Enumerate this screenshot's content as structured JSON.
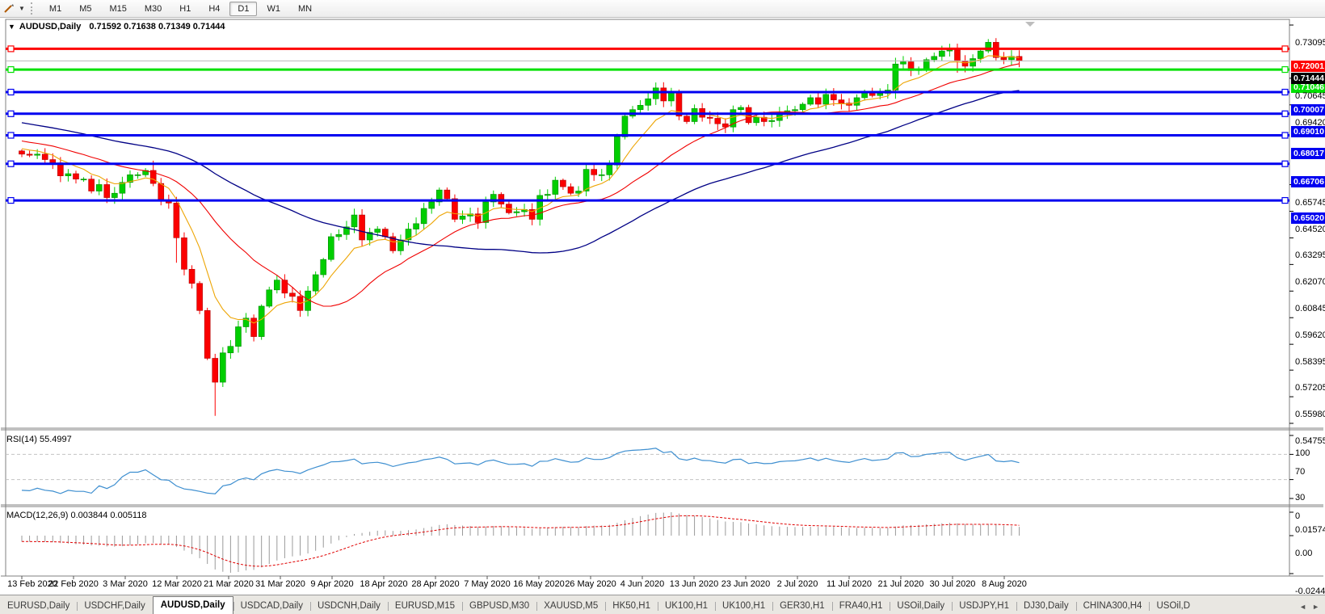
{
  "toolbar": {
    "tool_icon_glyph": "✐",
    "dropdown_glyph": "▼",
    "timeframes": [
      "M1",
      "M5",
      "M15",
      "M30",
      "H1",
      "H4",
      "D1",
      "W1",
      "MN"
    ],
    "active_timeframe": "D1"
  },
  "chart": {
    "menu_arrow": "▼",
    "title_symbol": "AUDUSD,Daily",
    "ohlc": "0.71592 0.71638 0.71349 0.71444"
  },
  "chart_data": {
    "type": "candlestick",
    "symbol": "AUDUSD",
    "period": "Daily",
    "ohlc_display": {
      "open": "0.71592",
      "high": "0.71638",
      "low": "0.71349",
      "close": "0.71444"
    },
    "ylim": [
      0.54755,
      0.73095
    ],
    "y_ticks": [
      "0.73095",
      "0.70645",
      "0.69420",
      "0.65745",
      "0.64520",
      "0.63295",
      "0.62070",
      "0.60845",
      "0.59620",
      "0.58395",
      "0.57205",
      "0.55980",
      "0.54755"
    ],
    "x_labels": [
      "13 Feb 2020",
      "22 Feb 2020",
      "3 Mar 2020",
      "12 Mar 2020",
      "21 Mar 2020",
      "31 Mar 2020",
      "9 Apr 2020",
      "18 Apr 2020",
      "28 Apr 2020",
      "7 May 2020",
      "16 May 2020",
      "26 May 2020",
      "4 Jun 2020",
      "13 Jun 2020",
      "23 Jun 2020",
      "2 Jul 2020",
      "11 Jul 2020",
      "21 Jul 2020",
      "30 Jul 2020",
      "8 Aug 2020"
    ],
    "hlines": [
      {
        "label": "0.72001",
        "price": 0.72001,
        "color": "#FE0000",
        "width": 3
      },
      {
        "label": "0.71046",
        "price": 0.71046,
        "color": "#00E000",
        "width": 3
      },
      {
        "label": "0.70007",
        "price": 0.70007,
        "color": "#0000F0",
        "width": 3
      },
      {
        "label": "0.69010",
        "price": 0.6901,
        "color": "#0000F0",
        "width": 3
      },
      {
        "label": "0.68017",
        "price": 0.68017,
        "color": "#0000F0",
        "width": 3
      },
      {
        "label": "0.66706",
        "price": 0.66706,
        "color": "#0000F0",
        "width": 3
      },
      {
        "label": "0.65020",
        "price": 0.6502,
        "color": "#0000F0",
        "width": 3
      }
    ],
    "current_price": {
      "label": "0.71444",
      "price": 0.71444,
      "line_color": "#B8B8B8",
      "label_bg": "#000000"
    },
    "first_open": 0.673,
    "closes": [
      0.6715,
      0.671,
      0.6715,
      0.669,
      0.6675,
      0.6615,
      0.6625,
      0.66,
      0.66,
      0.6545,
      0.6575,
      0.6515,
      0.6535,
      0.6585,
      0.662,
      0.662,
      0.664,
      0.658,
      0.65,
      0.649,
      0.633,
      0.6185,
      0.612,
      0.5995,
      0.5775,
      0.5665,
      0.58,
      0.583,
      0.592,
      0.596,
      0.5875,
      0.6015,
      0.609,
      0.6135,
      0.6075,
      0.606,
      0.5995,
      0.6085,
      0.616,
      0.623,
      0.6335,
      0.6345,
      0.638,
      0.6435,
      0.632,
      0.6355,
      0.637,
      0.6335,
      0.627,
      0.632,
      0.637,
      0.6395,
      0.6465,
      0.6495,
      0.655,
      0.651,
      0.6415,
      0.643,
      0.644,
      0.64,
      0.6495,
      0.653,
      0.6485,
      0.6445,
      0.645,
      0.646,
      0.6415,
      0.6525,
      0.653,
      0.6595,
      0.6565,
      0.6535,
      0.6545,
      0.6645,
      0.662,
      0.662,
      0.6665,
      0.6795,
      0.689,
      0.692,
      0.694,
      0.697,
      0.702,
      0.696,
      0.7,
      0.689,
      0.6865,
      0.6925,
      0.6885,
      0.688,
      0.6855,
      0.684,
      0.692,
      0.693,
      0.686,
      0.6885,
      0.6865,
      0.687,
      0.6905,
      0.6915,
      0.692,
      0.6945,
      0.6975,
      0.6945,
      0.699,
      0.6965,
      0.695,
      0.694,
      0.6975,
      0.7005,
      0.6985,
      0.6995,
      0.701,
      0.713,
      0.714,
      0.71,
      0.7105,
      0.715,
      0.7165,
      0.719,
      0.7195,
      0.7145,
      0.712,
      0.7155,
      0.719,
      0.723,
      0.716,
      0.715,
      0.7165,
      0.71444
    ],
    "special_wicks": {
      "17": {
        "high": 0.6685
      },
      "20": {
        "low": 0.6215
      },
      "25": {
        "low": 0.551
      },
      "82": {
        "high": 0.7045
      },
      "113": {
        "low": 0.697
      },
      "121": {
        "low": 0.709
      },
      "125": {
        "high": 0.7245
      }
    },
    "bull_color": "#00CE00",
    "bear_color": "#FB0000",
    "ma_lines": [
      {
        "name": "ma-fast",
        "type": "ema",
        "period": 8,
        "color": "#EDA504"
      },
      {
        "name": "ma-mid",
        "type": "sma",
        "period": 20,
        "color": "#F00000"
      },
      {
        "name": "ma-slow",
        "type": "sma",
        "period": 50,
        "color": "#000085"
      }
    ],
    "rsi": {
      "label": "RSI(14) 55.4997",
      "period": 14,
      "color": "#3E8FD0",
      "level_lines": [
        70,
        30
      ],
      "axis_labels": [
        "100",
        "70",
        "30",
        "0"
      ],
      "axis_values": [
        100,
        70,
        30,
        0
      ]
    },
    "macd": {
      "label": "MACD(12,26,9) 0.003844 0.005118",
      "fast": 12,
      "slow": 26,
      "signal_period": 9,
      "hist_color": "#9A9A9A",
      "signal_color": "#E00000",
      "axis_labels": [
        "0.015741",
        "0.00",
        "-0.024412"
      ]
    }
  },
  "tabs": {
    "items": [
      "EURUSD,Daily",
      "USDCHF,Daily",
      "AUDUSD,Daily",
      "USDCAD,Daily",
      "USDCNH,Daily",
      "EURUSD,M15",
      "GBPUSD,M30",
      "XAUUSD,M5",
      "HK50,H1",
      "UK100,H1",
      "UK100,H1",
      "GER30,H1",
      "FRA40,H1",
      "USOil,Daily",
      "USDJPY,H1",
      "DJ30,Daily",
      "CHINA300,H4",
      "USOil,D"
    ],
    "active": "AUDUSD,Daily",
    "scroll_left_glyph": "◄",
    "scroll_right_glyph": "►"
  }
}
